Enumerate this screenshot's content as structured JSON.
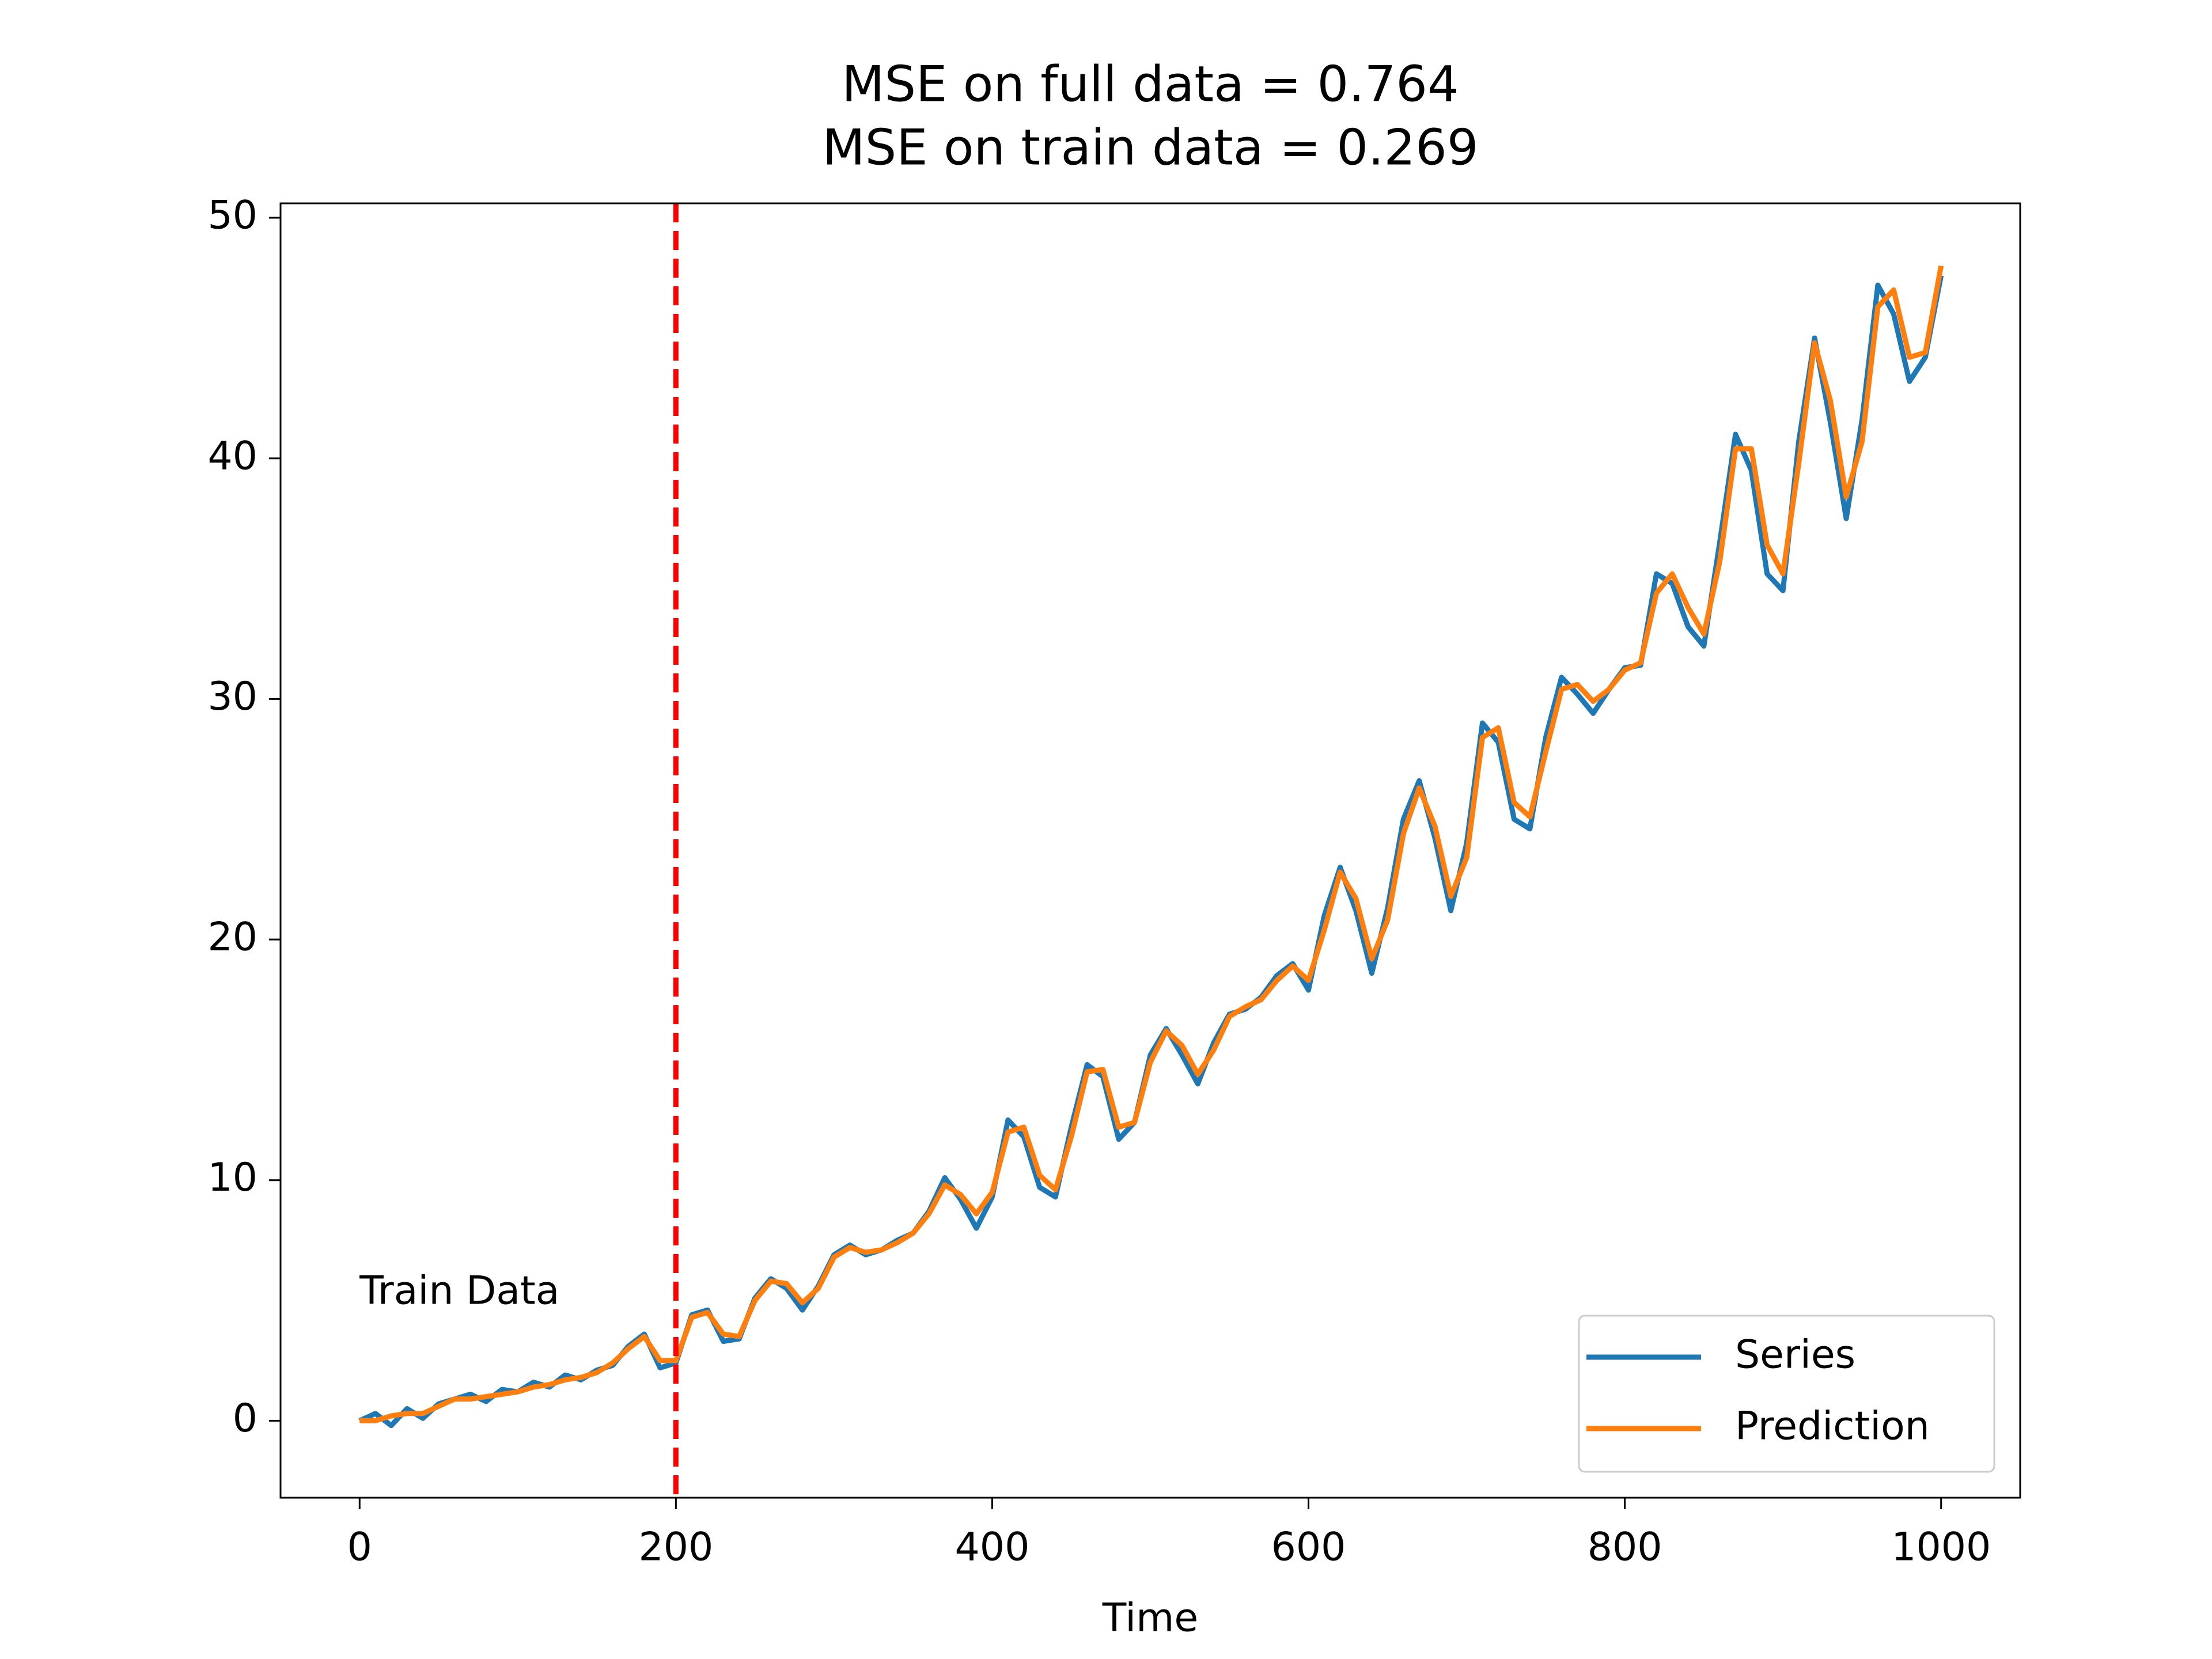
{
  "chart_data": {
    "type": "line",
    "title": "MSE on full data = 0.764",
    "subtitle": "MSE on train data = 0.269",
    "xlabel": "Time",
    "x": [
      0,
      10,
      20,
      30,
      40,
      50,
      60,
      70,
      80,
      90,
      100,
      110,
      120,
      130,
      140,
      150,
      160,
      170,
      180,
      190,
      200,
      210,
      220,
      230,
      240,
      250,
      260,
      270,
      280,
      290,
      300,
      310,
      320,
      330,
      340,
      350,
      360,
      370,
      380,
      390,
      400,
      410,
      420,
      430,
      440,
      450,
      460,
      470,
      480,
      490,
      500,
      510,
      520,
      530,
      540,
      550,
      560,
      570,
      580,
      590,
      600,
      610,
      620,
      630,
      640,
      650,
      660,
      670,
      680,
      690,
      700,
      710,
      720,
      730,
      740,
      750,
      760,
      770,
      780,
      790,
      800,
      810,
      820,
      830,
      840,
      850,
      860,
      870,
      880,
      890,
      900,
      910,
      920,
      930,
      940,
      950,
      960,
      970,
      980,
      990,
      1000
    ],
    "series": [
      {
        "name": "Series",
        "color": "#1f77b4",
        "values": [
          0,
          0.3,
          -0.2,
          0.5,
          0.1,
          0.7,
          0.9,
          1.1,
          0.8,
          1.3,
          1.2,
          1.6,
          1.4,
          1.9,
          1.7,
          2.1,
          2.3,
          3.1,
          3.6,
          2.2,
          2.4,
          4.4,
          4.6,
          3.3,
          3.4,
          5.1,
          5.9,
          5.5,
          4.6,
          5.6,
          6.9,
          7.3,
          6.9,
          7.1,
          7.5,
          7.8,
          8.7,
          10.1,
          9.2,
          8.0,
          9.3,
          12.5,
          11.8,
          9.7,
          9.3,
          12.2,
          14.8,
          14.3,
          11.7,
          12.4,
          15.2,
          16.3,
          15.2,
          14.0,
          15.7,
          16.9,
          17.1,
          17.6,
          18.5,
          19.0,
          17.9,
          21.0,
          23.0,
          21.2,
          18.6,
          21.3,
          25.0,
          26.6,
          24.2,
          21.2,
          24.0,
          29.0,
          28.2,
          25.0,
          24.6,
          28.4,
          30.9,
          30.2,
          29.4,
          30.4,
          31.3,
          31.4,
          35.2,
          34.8,
          33.0,
          32.2,
          36.5,
          41.0,
          39.5,
          35.2,
          34.5,
          40.7,
          45.0,
          41.5,
          37.5,
          41.6,
          47.2,
          46.0,
          43.2,
          44.2,
          47.6
        ]
      },
      {
        "name": "Prediction",
        "color": "#ff7f0e",
        "values": [
          0,
          0,
          0.2,
          0.3,
          0.3,
          0.6,
          0.9,
          0.9,
          1.0,
          1.1,
          1.2,
          1.4,
          1.5,
          1.7,
          1.8,
          2.0,
          2.4,
          3.0,
          3.5,
          2.5,
          2.5,
          4.3,
          4.5,
          3.6,
          3.5,
          5.0,
          5.8,
          5.7,
          4.9,
          5.5,
          6.8,
          7.2,
          7.0,
          7.1,
          7.4,
          7.8,
          8.6,
          9.8,
          9.4,
          8.6,
          9.5,
          12.0,
          12.2,
          10.2,
          9.6,
          11.8,
          14.5,
          14.6,
          12.2,
          12.4,
          14.9,
          16.2,
          15.6,
          14.4,
          15.4,
          16.8,
          17.2,
          17.5,
          18.3,
          18.9,
          18.3,
          20.4,
          22.8,
          21.7,
          19.2,
          20.8,
          24.4,
          26.3,
          24.7,
          21.8,
          23.4,
          28.4,
          28.8,
          25.7,
          25.1,
          27.8,
          30.4,
          30.6,
          29.9,
          30.4,
          31.2,
          31.5,
          34.4,
          35.2,
          33.8,
          32.7,
          35.7,
          40.4,
          40.4,
          36.4,
          35.2,
          39.8,
          44.8,
          42.4,
          38.4,
          40.7,
          46.3,
          47.0,
          44.2,
          44.4,
          48.0
        ]
      }
    ],
    "xlim": [
      -50,
      1050
    ],
    "ylim": [
      -3.2,
      50.6
    ],
    "xticks": [
      0,
      200,
      400,
      600,
      800,
      1000
    ],
    "yticks": [
      0,
      10,
      20,
      30,
      40,
      50
    ],
    "grid": false,
    "legend": "lower right",
    "vline": {
      "x": 200,
      "color": "#ff0000"
    },
    "annotation": {
      "text": "Train Data",
      "x": 0,
      "y": 5.3,
      "color": "#ff0000"
    }
  }
}
